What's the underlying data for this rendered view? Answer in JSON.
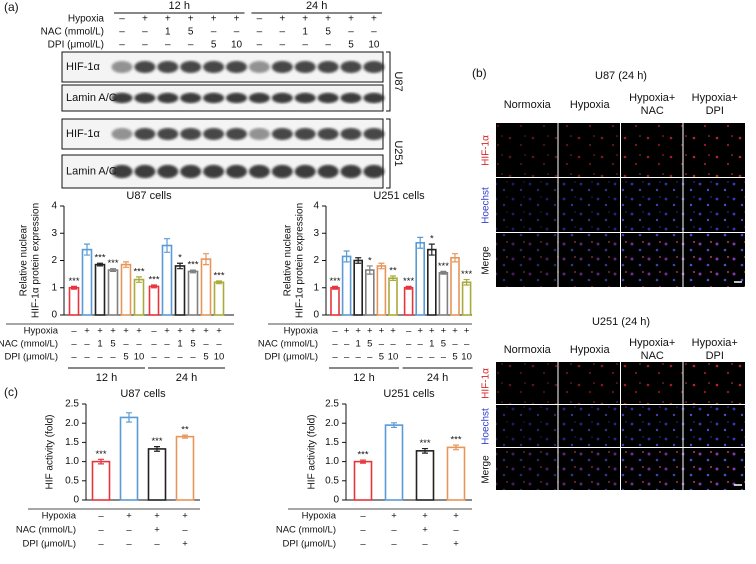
{
  "panel_labels": [
    "(a)",
    "(b)",
    "(c)"
  ],
  "blot": {
    "timepoints": [
      "12 h",
      "24 h"
    ],
    "conditions": [
      {
        "label": "Hypoxia",
        "values": [
          "–",
          "+",
          "+",
          "+",
          "+",
          "+",
          "–",
          "+",
          "+",
          "+",
          "+",
          "+"
        ]
      },
      {
        "label": "NAC (mmol/L)",
        "values": [
          "–",
          "–",
          "1",
          "5",
          "–",
          "–",
          "–",
          "–",
          "1",
          "5",
          "–",
          "–"
        ]
      },
      {
        "label": "DPI (μmol/L)",
        "values": [
          "–",
          "–",
          "–",
          "–",
          "5",
          "10",
          "–",
          "–",
          "–",
          "–",
          "5",
          "10"
        ]
      }
    ],
    "cell_lines": [
      {
        "name": "U87",
        "rows": [
          "HIF-1α",
          "Lamin A/C"
        ]
      },
      {
        "name": "U251",
        "rows": [
          "HIF-1α",
          "Lamin A/C"
        ]
      }
    ]
  },
  "chart_data": [
    {
      "type": "bar",
      "title": "U87 cells",
      "y_label": [
        "Relative nuclear",
        "HIF-1α protein expression"
      ],
      "values": [
        1.0,
        2.4,
        1.85,
        1.65,
        1.85,
        1.3,
        1.05,
        2.55,
        1.8,
        1.6,
        2.05,
        1.2
      ],
      "errors": [
        0.05,
        0.2,
        0.05,
        0.05,
        0.1,
        0.1,
        0.05,
        0.25,
        0.1,
        0.05,
        0.2,
        0.05
      ],
      "annotations": [
        "***",
        null,
        "***",
        "***",
        null,
        "***",
        "***",
        null,
        "*",
        "***",
        null,
        "***"
      ],
      "colors": [
        "#e8343c",
        "#5b9bd5",
        "#222222",
        "#7f7f7f",
        "#e8955a",
        "#a9ab3c"
      ],
      "ylim": [
        0,
        4
      ],
      "yticks": [
        0,
        1,
        2,
        3,
        4
      ],
      "groups": [
        "12 h",
        "24 h"
      ],
      "conditions": [
        {
          "label": "Hypoxia",
          "values": [
            "–",
            "+",
            "+",
            "+",
            "+",
            "+",
            "–",
            "+",
            "+",
            "+",
            "+",
            "+"
          ]
        },
        {
          "label": "NAC (mmol/L)",
          "values": [
            "–",
            "–",
            "1",
            "5",
            "–",
            "–",
            "–",
            "–",
            "1",
            "5",
            "–",
            "–"
          ]
        },
        {
          "label": "DPI (μmol/L)",
          "values": [
            "–",
            "–",
            "–",
            "–",
            "5",
            "10",
            "–",
            "–",
            "–",
            "–",
            "5",
            "10"
          ]
        }
      ]
    },
    {
      "type": "bar",
      "title": "U251 cells",
      "y_label": [
        "Relative nuclear",
        "HIF-1α protein expression"
      ],
      "values": [
        1.0,
        2.15,
        2.0,
        1.65,
        1.8,
        1.35,
        1.0,
        2.65,
        2.4,
        1.55,
        2.1,
        1.2
      ],
      "errors": [
        0.05,
        0.2,
        0.1,
        0.15,
        0.1,
        0.08,
        0.05,
        0.2,
        0.2,
        0.05,
        0.15,
        0.1
      ],
      "annotations": [
        "***",
        null,
        null,
        "*",
        null,
        "**",
        "***",
        null,
        "*",
        "***",
        null,
        "***"
      ],
      "colors": [
        "#e8343c",
        "#5b9bd5",
        "#222222",
        "#7f7f7f",
        "#e8955a",
        "#a9ab3c"
      ],
      "ylim": [
        0,
        4
      ],
      "yticks": [
        0,
        1,
        2,
        3,
        4
      ],
      "groups": [
        "12 h",
        "24 h"
      ],
      "conditions": [
        {
          "label": "Hypoxia",
          "values": [
            "–",
            "+",
            "+",
            "+",
            "+",
            "+",
            "–",
            "+",
            "+",
            "+",
            "+",
            "+"
          ]
        },
        {
          "label": "NAC (mmol/L)",
          "values": [
            "–",
            "–",
            "1",
            "5",
            "–",
            "–",
            "–",
            "–",
            "1",
            "5",
            "–",
            "–"
          ]
        },
        {
          "label": "DPI (μmol/L)",
          "values": [
            "–",
            "–",
            "–",
            "–",
            "5",
            "10",
            "–",
            "–",
            "–",
            "–",
            "5",
            "10"
          ]
        }
      ]
    },
    {
      "type": "bar",
      "title": "U87 cells",
      "y_label": [
        "HIF activity (fold)"
      ],
      "values": [
        1.0,
        2.15,
        1.33,
        1.65
      ],
      "errors": [
        0.06,
        0.12,
        0.06,
        0.04
      ],
      "annotations": [
        "***",
        null,
        "***",
        "**"
      ],
      "colors": [
        "#e8343c",
        "#5b9bd5",
        "#222222",
        "#e8955a"
      ],
      "ylim": [
        0,
        2.5
      ],
      "yticks": [
        0,
        0.5,
        {
          "value": 1,
          "label": "1.0"
        },
        1.5,
        {
          "value": 2,
          "label": "2.0"
        },
        2.5
      ],
      "conditions": [
        {
          "label": "Hypoxia",
          "values": [
            "–",
            "+",
            "+",
            "+"
          ]
        },
        {
          "label": "NAC (mmol/L)",
          "values": [
            "–",
            "–",
            "+",
            "–"
          ]
        },
        {
          "label": "DPI (μmol/L)",
          "values": [
            "–",
            "–",
            "–",
            "+"
          ]
        }
      ]
    },
    {
      "type": "bar",
      "title": "U251 cells",
      "y_label": [
        "HIF activity (fold)"
      ],
      "values": [
        1.0,
        1.95,
        1.28,
        1.37
      ],
      "errors": [
        0.04,
        0.06,
        0.06,
        0.06
      ],
      "annotations": [
        "***",
        null,
        "***",
        "***"
      ],
      "colors": [
        "#e8343c",
        "#5b9bd5",
        "#222222",
        "#e8955a"
      ],
      "ylim": [
        0,
        2.5
      ],
      "yticks": [
        0,
        0.5,
        {
          "value": 1,
          "label": "1.0"
        },
        1.5,
        {
          "value": 2,
          "label": "2.0"
        },
        2.5
      ],
      "conditions": [
        {
          "label": "Hypoxia",
          "values": [
            "–",
            "+",
            "+",
            "+"
          ]
        },
        {
          "label": "NAC (mmol/L)",
          "values": [
            "–",
            "–",
            "+",
            "–"
          ]
        },
        {
          "label": "DPI (μmol/L)",
          "values": [
            "–",
            "–",
            "–",
            "+"
          ]
        }
      ]
    }
  ],
  "microscopy": [
    {
      "title": "U87 (24 h)",
      "columns": [
        [
          "Normoxia"
        ],
        [
          "Hypoxia"
        ],
        [
          "Hypoxia+",
          "NAC"
        ],
        [
          "Hypoxia+",
          "DPI"
        ]
      ],
      "rows": [
        "HIF-1α",
        "Hoechst",
        "Merge"
      ]
    },
    {
      "title": "U251 (24 h)",
      "columns": [
        [
          "Normoxia"
        ],
        [
          "Hypoxia"
        ],
        [
          "Hypoxia+",
          "NAC"
        ],
        [
          "Hypoxia+",
          "DPI"
        ]
      ],
      "rows": [
        "HIF-1α",
        "Hoechst",
        "Merge"
      ]
    }
  ]
}
